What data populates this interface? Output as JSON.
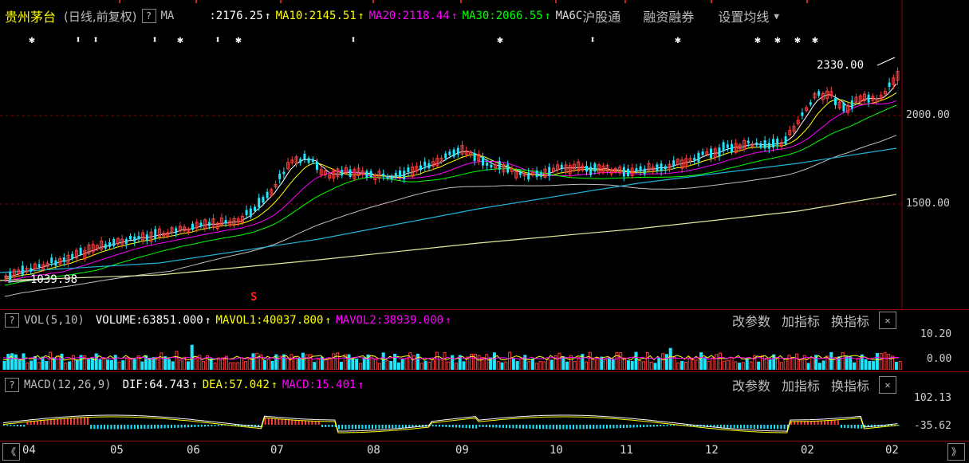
{
  "header": {
    "stock_name": "贵州茅台",
    "period_label": "(日线,前复权)",
    "help_glyph": "?",
    "ma_label": "MA",
    "ma5_value": ":2176.25",
    "ma10_label": "MA10:2145.51",
    "ma20_label": "MA20:2118.44",
    "ma30_label": "MA30:2066.55",
    "ma60_label": "MA6C",
    "menu": [
      "沪股通",
      "融资融券",
      "设置均线"
    ]
  },
  "price_chart": {
    "y_labels": [
      "2000.00",
      "1500.00"
    ],
    "high_label": "2330.00",
    "low_label": "1039.98",
    "signal_mark": "S"
  },
  "volume_panel": {
    "help_glyph": "?",
    "title": "VOL(5,10)",
    "volume": "VOLUME:63851.000",
    "mavol1": "MAVOL1:40037.800",
    "mavol2": "MAVOL2:38939.000",
    "tools": [
      "改参数",
      "加指标",
      "换指标"
    ],
    "close_glyph": "✕",
    "y_labels": [
      "10.20",
      "0.00"
    ]
  },
  "macd_panel": {
    "help_glyph": "?",
    "title": "MACD(12,26,9)",
    "dif": "DIF:64.743",
    "dea": "DEA:57.042",
    "macd": "MACD:15.401",
    "tools": [
      "改参数",
      "加指标",
      "换指标"
    ],
    "close_glyph": "✕",
    "y_labels": [
      "102.13",
      "-35.62"
    ]
  },
  "x_axis": {
    "labels": [
      "04",
      "05",
      "06",
      "07",
      "08",
      "09",
      "10",
      "11",
      "12",
      "02",
      "02"
    ],
    "nav_left": "《",
    "nav_right": "》"
  },
  "colors": {
    "background": "#000000",
    "up": "#ff3c3c",
    "down": "#1ee6ff",
    "ma5": "#ffffff",
    "ma10": "#ffff00",
    "ma20": "#ff00ff",
    "ma30": "#00ff00",
    "ma60": "#c0c0c0",
    "ma120": "#1fb4d8",
    "ma250": "#e8e8a0",
    "grid": "#8b0000"
  }
}
